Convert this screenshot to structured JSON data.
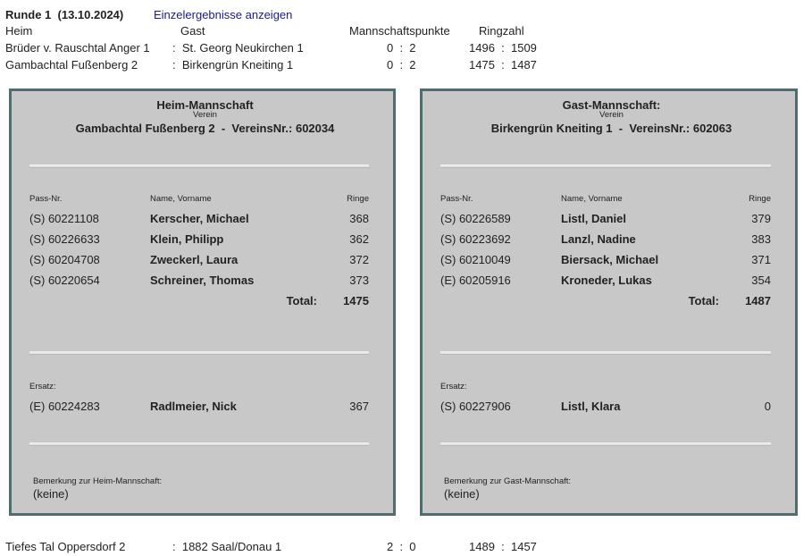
{
  "header": {
    "round": "Runde 1  (13.10.2024)",
    "link": "Einzelergebnisse anzeigen"
  },
  "columns": [
    "Heim",
    "Gast",
    "Mannschaftspunkte",
    "Ringzahl"
  ],
  "matches": [
    {
      "heim": "Brüder v. Rauschtal Anger 1",
      "gast": ":  St. Georg Neukirchen 1",
      "punkte": "0  :  2",
      "ringe": "1496  :  1509"
    },
    {
      "heim": "Gambachtal Fußenberg 2",
      "gast": ":  Birkengrün Kneiting 1",
      "punkte": "0  :  2",
      "ringe": "1475  :  1487"
    }
  ],
  "panels": [
    {
      "title": "Heim-Mannschaft",
      "verein_label": "Verein",
      "verein": "Gambachtal Fußenberg 2  -  VereinsNr.: 602034",
      "columns": [
        "Pass-Nr.",
        "Name, Vorname",
        "Ringe"
      ],
      "players": [
        {
          "pass": "(S) 60221108",
          "name": "Kerscher, Michael",
          "ringe": 368
        },
        {
          "pass": "(S) 60226633",
          "name": "Klein, Philipp",
          "ringe": 362
        },
        {
          "pass": "(S) 60204708",
          "name": "Zweckerl, Laura",
          "ringe": 372
        },
        {
          "pass": "(S) 60220654",
          "name": "Schreiner, Thomas",
          "ringe": 373
        }
      ],
      "total_label": "Total:",
      "total": 1475,
      "ersatz_label": "Ersatz:",
      "ersatz": [
        {
          "pass": "(E) 60224283",
          "name": "Radlmeier, Nick",
          "ringe": 367
        }
      ],
      "remark_label": "Bemerkung zur Heim-Mannschaft:",
      "remark": "(keine)"
    },
    {
      "title": "Gast-Mannschaft:",
      "verein_label": "Verein",
      "verein": "Birkengrün Kneiting 1  -  VereinsNr.: 602063",
      "columns": [
        "Pass-Nr.",
        "Name, Vorname",
        "Ringe"
      ],
      "players": [
        {
          "pass": "(S) 60226589",
          "name": "Listl, Daniel",
          "ringe": 379
        },
        {
          "pass": "(S) 60223692",
          "name": "Lanzl, Nadine",
          "ringe": 383
        },
        {
          "pass": "(S) 60210049",
          "name": "Biersack, Michael",
          "ringe": 371
        },
        {
          "pass": "(E) 60205916",
          "name": "Kroneder, Lukas",
          "ringe": 354
        }
      ],
      "total_label": "Total:",
      "total": 1487,
      "ersatz_label": "Ersatz:",
      "ersatz": [
        {
          "pass": "(S) 60227906",
          "name": "Listl, Klara",
          "ringe": 0
        }
      ],
      "remark_label": "Bemerkung zur Gast-Mannschaft:",
      "remark": "(keine)"
    }
  ],
  "next_match": {
    "heim": "Tiefes Tal Oppersdorf 2",
    "gast": ":  1882 Saal/Donau 1",
    "punkte": "2  :  0",
    "ringe": "1489  :  1457"
  }
}
